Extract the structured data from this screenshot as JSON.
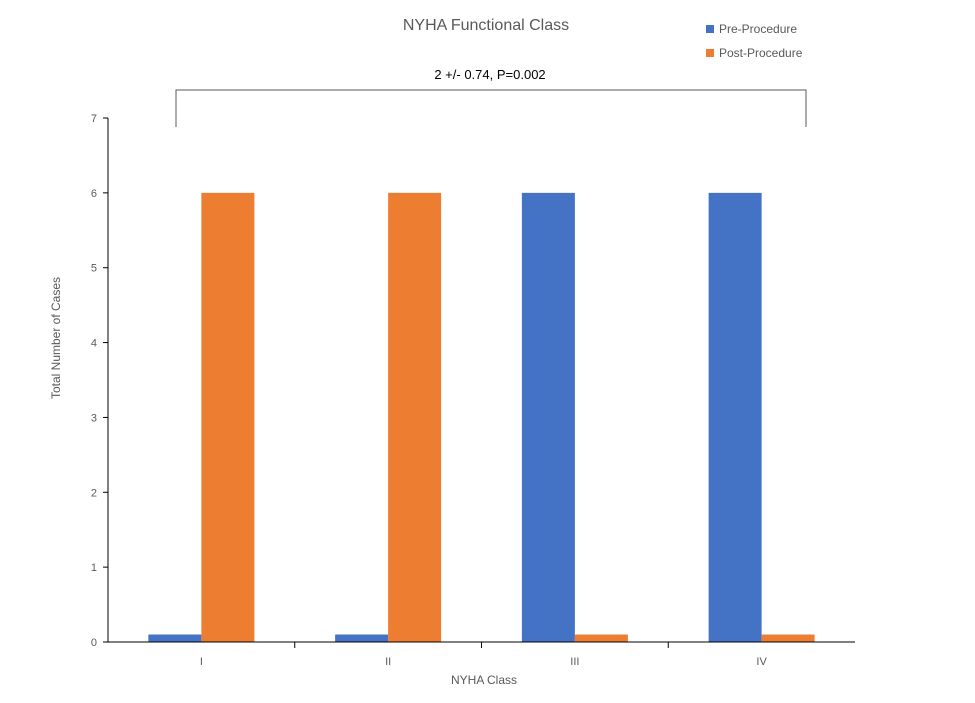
{
  "chart_data": {
    "type": "bar",
    "title": "NYHA Functional Class",
    "xlabel": "NYHA Class",
    "ylabel": "Total Number of Cases",
    "categories": [
      "I",
      "II",
      "III",
      "IV"
    ],
    "series": [
      {
        "name": "Pre-Procedure",
        "color": "#4472C4",
        "values": [
          0.1,
          0.1,
          6,
          6
        ]
      },
      {
        "name": "Post-Procedure",
        "color": "#ED7D31",
        "values": [
          6,
          6,
          0.1,
          0.1
        ]
      }
    ],
    "ylim": [
      0,
      7
    ],
    "yticks": [
      "0",
      "1",
      "2",
      "3",
      "4",
      "5",
      "6",
      "7"
    ],
    "grid": false,
    "legend_position": "top-right",
    "annotation": "2 +/- 0.74, P=0.002"
  }
}
